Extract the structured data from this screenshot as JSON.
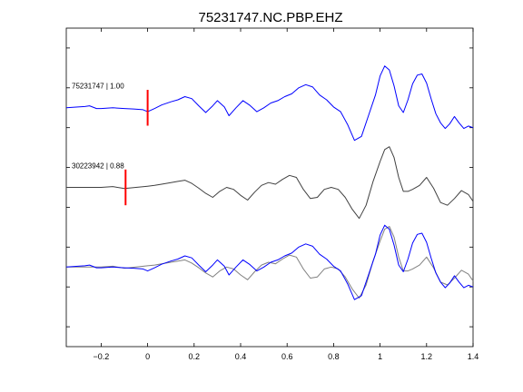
{
  "chart_data": {
    "type": "line",
    "title": "75231747.NC.PBP.EHZ",
    "xlabel": "",
    "ylabel": "",
    "xlim": [
      -0.35,
      1.4
    ],
    "xticks": [
      -0.2,
      0,
      0.2,
      0.4,
      0.6,
      0.8,
      1,
      1.2,
      1.4
    ],
    "xtick_labels": [
      "−0.2",
      "0",
      "0.2",
      "0.4",
      "0.6",
      "0.8",
      "1",
      "1.2",
      "1.4"
    ],
    "ylim": [
      -4,
      4
    ],
    "yticks": [
      -3.5,
      -2.5,
      -1.5,
      -0.5,
      0.5,
      1.5,
      2.5,
      3.5
    ],
    "grid": false,
    "colors": {
      "primary": "#0000ff",
      "reference": "#404040",
      "overlay_reference": "#808080",
      "pick": "#ff0000"
    },
    "traces": [
      {
        "label": "75231747 | 1.00",
        "offset": 2.0,
        "pick_time": 0.0,
        "color": "#0000ff",
        "x": [
          -0.35,
          -0.3,
          -0.27,
          -0.25,
          -0.22,
          -0.2,
          -0.15,
          -0.1,
          -0.06,
          -0.02,
          0.0,
          0.03,
          0.06,
          0.1,
          0.13,
          0.16,
          0.19,
          0.22,
          0.25,
          0.28,
          0.3,
          0.33,
          0.35,
          0.38,
          0.41,
          0.44,
          0.47,
          0.5,
          0.53,
          0.56,
          0.59,
          0.62,
          0.65,
          0.68,
          0.71,
          0.74,
          0.77,
          0.8,
          0.83,
          0.86,
          0.89,
          0.92,
          0.95,
          0.98,
          1.0,
          1.02,
          1.04,
          1.06,
          1.08,
          1.1,
          1.12,
          1.14,
          1.16,
          1.18,
          1.2,
          1.22,
          1.24,
          1.26,
          1.28,
          1.3,
          1.32,
          1.34,
          1.36,
          1.38,
          1.4
        ],
        "y": [
          0.0,
          0.02,
          0.03,
          0.05,
          -0.02,
          -0.02,
          0.0,
          -0.02,
          -0.03,
          -0.05,
          -0.1,
          -0.02,
          0.07,
          0.15,
          0.2,
          0.28,
          0.23,
          0.05,
          -0.12,
          0.05,
          0.18,
          0.02,
          -0.2,
          0.0,
          0.18,
          0.06,
          -0.1,
          0.0,
          0.12,
          0.18,
          0.28,
          0.35,
          0.5,
          0.58,
          0.52,
          0.32,
          0.2,
          0.02,
          -0.1,
          -0.42,
          -0.82,
          -0.72,
          -0.2,
          0.32,
          0.8,
          1.05,
          0.95,
          0.55,
          0.05,
          -0.12,
          0.2,
          0.6,
          0.82,
          0.85,
          0.62,
          0.22,
          -0.15,
          -0.38,
          -0.52,
          -0.4,
          -0.22,
          -0.38,
          -0.52,
          -0.46,
          -0.5
        ]
      },
      {
        "label": "30223942 | 0.88",
        "offset": 0.0,
        "pick_time": -0.095,
        "color": "#404040",
        "x": [
          -0.35,
          -0.3,
          -0.25,
          -0.2,
          -0.15,
          -0.1,
          -0.05,
          0.0,
          0.03,
          0.06,
          0.1,
          0.13,
          0.16,
          0.19,
          0.22,
          0.25,
          0.28,
          0.31,
          0.34,
          0.37,
          0.4,
          0.43,
          0.46,
          0.49,
          0.52,
          0.55,
          0.58,
          0.61,
          0.64,
          0.67,
          0.7,
          0.73,
          0.76,
          0.79,
          0.82,
          0.85,
          0.88,
          0.91,
          0.94,
          0.97,
          1.0,
          1.02,
          1.04,
          1.06,
          1.08,
          1.1,
          1.12,
          1.14,
          1.17,
          1.2,
          1.23,
          1.26,
          1.29,
          1.32,
          1.35,
          1.38,
          1.4
        ],
        "y": [
          0.0,
          0.0,
          0.0,
          0.0,
          0.02,
          -0.03,
          0.0,
          0.03,
          0.05,
          0.08,
          0.12,
          0.15,
          0.18,
          0.1,
          -0.02,
          -0.15,
          -0.25,
          -0.1,
          0.0,
          -0.05,
          -0.2,
          -0.32,
          -0.12,
          0.05,
          0.12,
          0.08,
          0.2,
          0.3,
          0.25,
          -0.05,
          -0.28,
          -0.25,
          -0.05,
          0.0,
          -0.05,
          -0.25,
          -0.55,
          -0.78,
          -0.45,
          0.15,
          0.65,
          0.95,
          1.02,
          0.75,
          0.25,
          -0.1,
          -0.1,
          -0.05,
          0.05,
          0.25,
          -0.02,
          -0.38,
          -0.45,
          -0.28,
          -0.08,
          -0.18,
          -0.35
        ]
      }
    ],
    "overlay_offset": -2.0
  }
}
